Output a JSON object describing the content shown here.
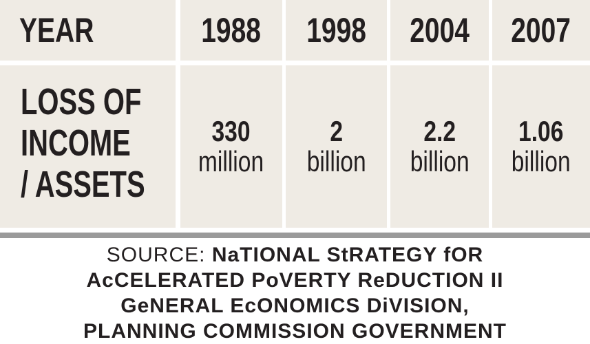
{
  "table": {
    "header": [
      "YEAR",
      "1988",
      "1998",
      "2004",
      "2007"
    ],
    "row": {
      "label_lines": [
        "LOSS OF",
        "INCOME",
        "/ ASSETS"
      ],
      "cells": [
        {
          "amount": "330",
          "unit": "million"
        },
        {
          "amount": "2",
          "unit": "billion"
        },
        {
          "amount": "2.2",
          "unit": "billion"
        },
        {
          "amount": "1.06",
          "unit": "billion"
        }
      ]
    }
  },
  "source": {
    "prefix": "SOURCE:",
    "lines": [
      "NaTIONAL StRATEGY fOR",
      "AcCELERATED PoVERTY ReDUCTION II",
      "GeNERAL EcONOMICS DiVISION,",
      "PLANNING COMMISSION GOVERNMENT"
    ]
  }
}
